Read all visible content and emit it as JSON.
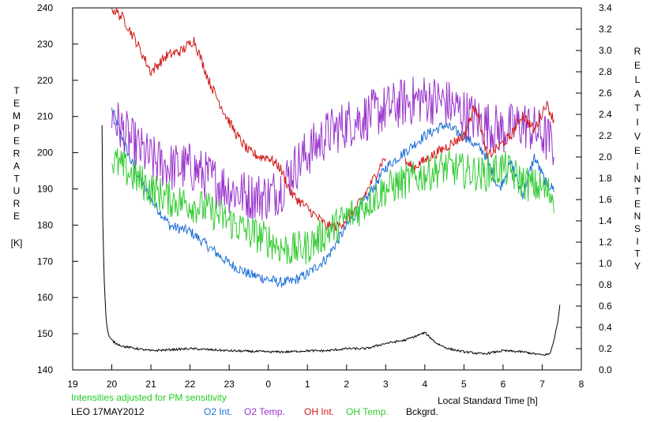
{
  "chart_data": {
    "type": "line",
    "left_axis": {
      "label_letters": [
        "T",
        "E",
        "M",
        "P",
        "E",
        "R",
        "A",
        "T",
        "U",
        "R",
        "E"
      ],
      "unit": "[K]",
      "range": [
        140,
        240
      ],
      "ticks": [
        "140",
        "150",
        "160",
        "170",
        "180",
        "190",
        "200",
        "210",
        "220",
        "230",
        "240"
      ]
    },
    "right_axis": {
      "label_letters_1": [
        "R",
        "E",
        "L",
        "A",
        "T",
        "I",
        "V",
        "E"
      ],
      "label_letters_2": [
        "I",
        "N",
        "T",
        "E",
        "N",
        "S",
        "I",
        "T",
        "Y"
      ],
      "range": [
        0.0,
        3.4
      ],
      "ticks": [
        "0.0",
        "0.2",
        "0.4",
        "0.6",
        "0.8",
        "1.0",
        "1.2",
        "1.4",
        "1.6",
        "1.8",
        "2.0",
        "2.2",
        "2.4",
        "2.6",
        "2.8",
        "3.0",
        "3.2",
        "3.4"
      ]
    },
    "x_axis": {
      "label": "Local Standard Time [h]",
      "range": [
        19,
        32
      ],
      "tick_labels": [
        "19",
        "20",
        "21",
        "22",
        "23",
        "0",
        "1",
        "2",
        "3",
        "4",
        "5",
        "6",
        "7",
        "8"
      ]
    },
    "note": "Intensities adjusted for PM sensitivity",
    "station": "LEO 17MAY2012",
    "grid": false,
    "series": [
      {
        "name": "O2 Int.",
        "color": "#1e6fd6",
        "axis": "right",
        "noise": 0.05,
        "x": [
          20.0,
          20.2,
          20.5,
          21.0,
          21.5,
          22.0,
          22.5,
          23.0,
          23.5,
          24.0,
          24.3,
          24.6,
          25.0,
          25.5,
          26.0,
          26.5,
          27.0,
          27.5,
          28.0,
          28.5,
          29.0,
          29.5,
          29.9,
          30.2,
          30.5,
          30.8,
          31.1,
          31.3
        ],
        "y": [
          2.45,
          2.25,
          1.95,
          1.6,
          1.35,
          1.3,
          1.15,
          1.0,
          0.9,
          0.85,
          0.82,
          0.83,
          0.9,
          1.05,
          1.35,
          1.6,
          1.9,
          2.05,
          2.2,
          2.3,
          2.2,
          2.05,
          1.7,
          1.95,
          1.65,
          2.0,
          1.75,
          1.7
        ]
      },
      {
        "name": "O2 Temp.",
        "color": "#9933cc",
        "axis": "left",
        "noise": 7,
        "x": [
          20.0,
          20.5,
          21.0,
          21.5,
          22.0,
          22.5,
          23.0,
          23.5,
          24.0,
          24.3,
          24.6,
          25.0,
          25.5,
          26.0,
          26.5,
          27.0,
          27.5,
          28.0,
          28.5,
          29.0,
          29.5,
          30.0,
          30.5,
          31.0,
          31.3
        ],
        "y": [
          210,
          203,
          198,
          196,
          196,
          193,
          190,
          188,
          188,
          190,
          195,
          200,
          205,
          208,
          210,
          212,
          214,
          215,
          214,
          211,
          208,
          206,
          208,
          205,
          202
        ]
      },
      {
        "name": "OH Int.",
        "color": "#d01818",
        "axis": "right",
        "noise": 0.05,
        "x": [
          20.0,
          20.3,
          20.6,
          21.0,
          21.4,
          21.8,
          22.1,
          22.5,
          22.9,
          23.2,
          23.5,
          23.8,
          24.0,
          24.3,
          24.6,
          24.9,
          25.2,
          25.5,
          25.8,
          26.1,
          26.4,
          26.7,
          26.9,
          27.0
        ],
        "y": [
          3.4,
          3.3,
          3.1,
          2.8,
          2.95,
          3.0,
          3.1,
          2.7,
          2.4,
          2.2,
          2.05,
          2.0,
          2.0,
          1.9,
          1.65,
          1.55,
          1.45,
          1.35,
          1.35,
          1.45,
          1.6,
          1.8,
          1.95,
          2.0
        ]
      },
      {
        "name": "OH Int. (late)",
        "color": "#d01818",
        "axis": "right",
        "noise": 0.05,
        "draw_only": true,
        "x": [
          27.5,
          27.7,
          29.0,
          29.3,
          29.6,
          29.9,
          30.2,
          30.5,
          30.8,
          31.1,
          31.3
        ],
        "y": [
          1.95,
          1.9,
          2.2,
          2.5,
          2.0,
          2.1,
          2.2,
          2.4,
          2.25,
          2.5,
          2.35
        ]
      },
      {
        "name": "OH Temp.",
        "color": "#33cc33",
        "axis": "left",
        "noise": 5,
        "x": [
          20.0,
          20.5,
          21.0,
          21.5,
          22.0,
          22.5,
          23.0,
          23.5,
          24.0,
          24.3,
          24.6,
          25.0,
          25.5,
          26.0,
          26.5,
          27.0,
          27.5,
          28.0,
          28.5,
          29.0,
          29.5,
          30.0,
          30.5,
          31.0,
          31.3
        ],
        "y": [
          198,
          194,
          190,
          187,
          186,
          184,
          181,
          178,
          176,
          174,
          173,
          174,
          178,
          182,
          186,
          190,
          192,
          194,
          196,
          195,
          194,
          196,
          192,
          190,
          188
        ]
      },
      {
        "name": "Bckgrd.",
        "color": "#000000",
        "axis": "right",
        "noise": 0.01,
        "x": [
          19.75,
          19.76,
          19.8,
          19.85,
          19.9,
          19.95,
          20.0,
          20.1,
          20.3,
          21.0,
          22.0,
          23.0,
          24.0,
          24.5,
          25.0,
          25.5,
          26.0,
          26.5,
          27.0,
          27.5,
          28.0,
          28.3,
          28.6,
          29.0,
          29.5,
          30.0,
          30.5,
          31.0,
          31.2,
          31.3,
          31.4,
          31.45
        ],
        "y": [
          2.3,
          1.6,
          0.9,
          0.5,
          0.35,
          0.3,
          0.28,
          0.25,
          0.22,
          0.18,
          0.2,
          0.18,
          0.17,
          0.17,
          0.18,
          0.18,
          0.2,
          0.2,
          0.25,
          0.28,
          0.35,
          0.25,
          0.2,
          0.17,
          0.15,
          0.18,
          0.17,
          0.14,
          0.15,
          0.28,
          0.45,
          0.62
        ]
      }
    ]
  },
  "legend": [
    "O2 Int.",
    "O2 Temp.",
    "OH Int.",
    "OH Temp.",
    "Bckgrd."
  ]
}
